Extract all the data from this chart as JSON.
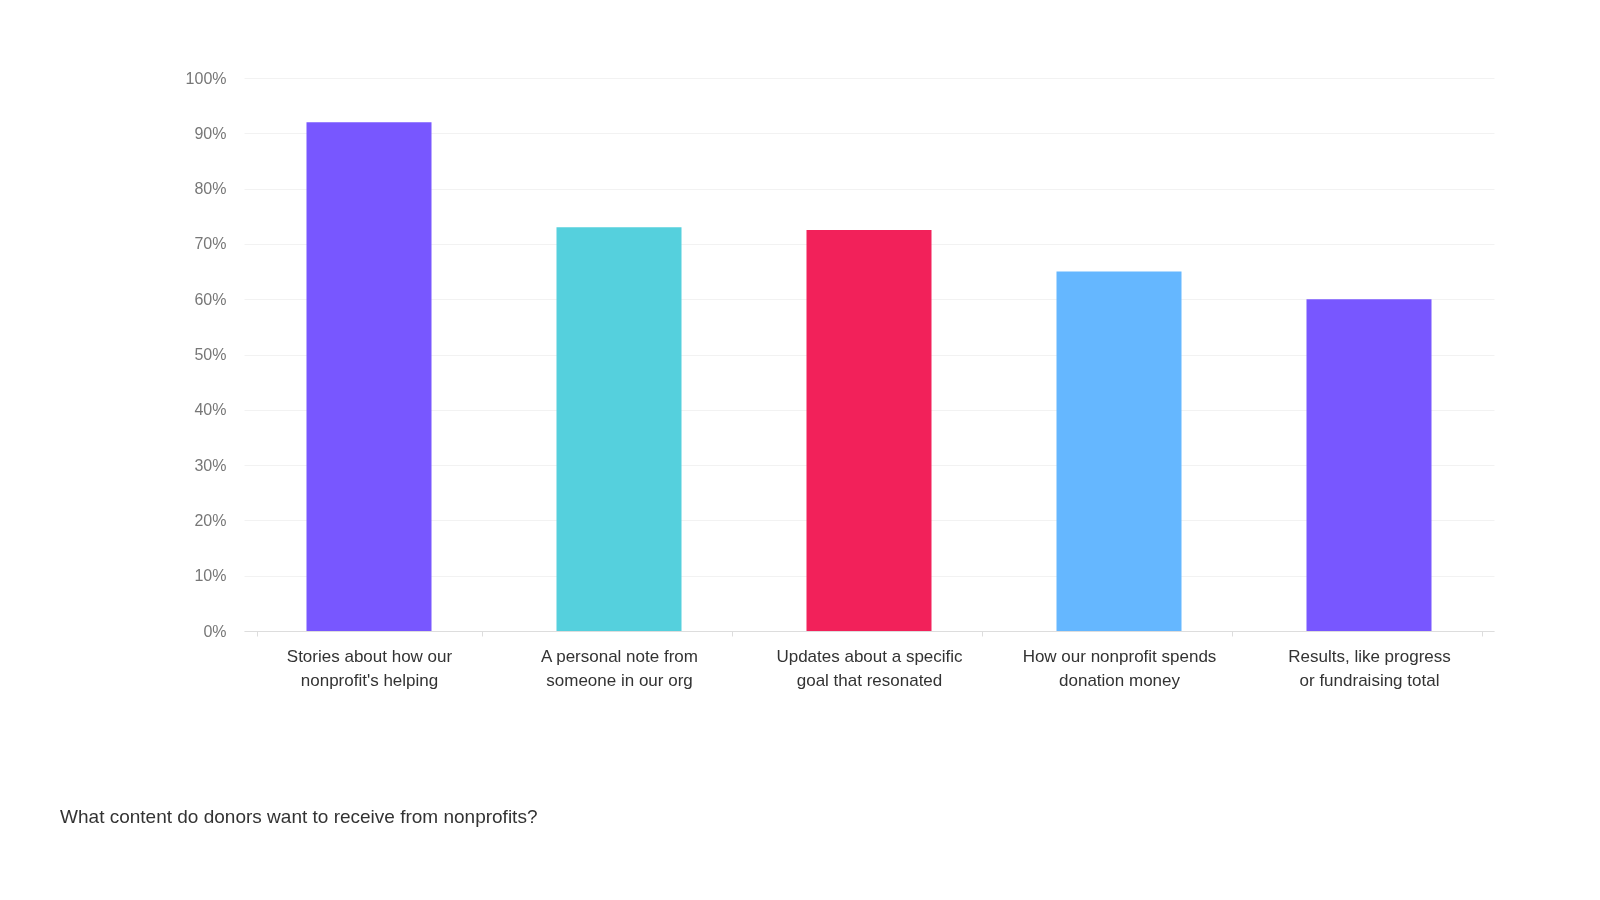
{
  "chart_data": {
    "type": "bar",
    "categories": [
      "Stories about how our\nnonprofit's helping",
      "A personal note from\nsomeone in our org",
      "Updates about a specific\ngoal that resonated",
      "How our nonprofit spends\ndonation money",
      "Results, like progress\nor fundraising total"
    ],
    "values": [
      92,
      73,
      72.5,
      65,
      60
    ],
    "colors": [
      "#7857ff",
      "#55d0dd",
      "#f2215a",
      "#65b7ff",
      "#7857ff"
    ],
    "ylim": [
      0,
      100
    ],
    "yticks": [
      {
        "value": 0,
        "label": "0%"
      },
      {
        "value": 10,
        "label": "10%"
      },
      {
        "value": 20,
        "label": "20%"
      },
      {
        "value": 30,
        "label": "30%"
      },
      {
        "value": 40,
        "label": "40%"
      },
      {
        "value": 50,
        "label": "50%"
      },
      {
        "value": 60,
        "label": "60%"
      },
      {
        "value": 70,
        "label": "70%"
      },
      {
        "value": 80,
        "label": "80%"
      },
      {
        "value": 90,
        "label": "90%"
      },
      {
        "value": 100,
        "label": "100%"
      }
    ],
    "grid": "y",
    "annotations": [
      "What content do donors want to receive from nonprofits?"
    ]
  }
}
